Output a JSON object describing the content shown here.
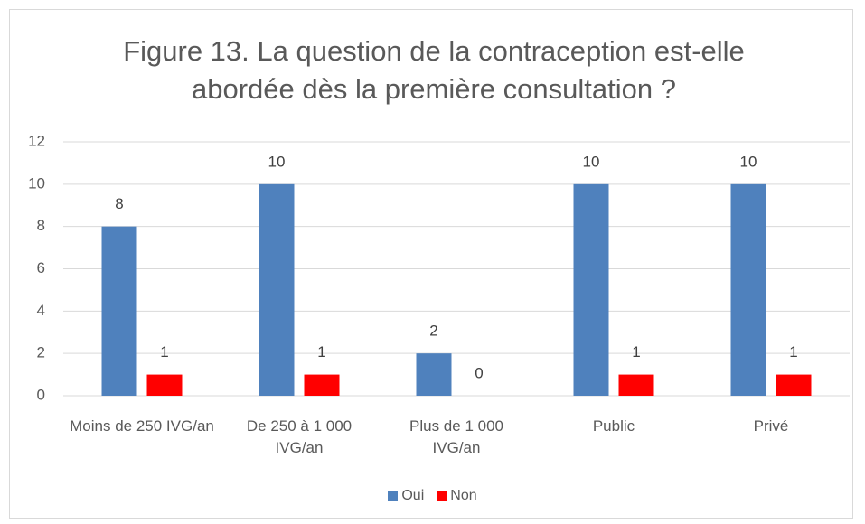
{
  "chart_data": {
    "type": "bar",
    "title": "Figure 13. La question de la contraception est-elle abordée dès la première consultation ?",
    "categories": [
      "Moins de 250 IVG/an",
      "De 250 à 1 000 IVG/an",
      "Plus de 1 000 IVG/an",
      "Public",
      "Privé"
    ],
    "series": [
      {
        "name": "Oui",
        "color": "#4f81bd",
        "values": [
          8,
          10,
          2,
          10,
          10
        ]
      },
      {
        "name": "Non",
        "color": "#ff0000",
        "values": [
          1,
          1,
          0,
          1,
          1
        ]
      }
    ],
    "ylim": [
      0,
      12
    ],
    "yticks": [
      0,
      2,
      4,
      6,
      8,
      10,
      12
    ],
    "grid": true,
    "legend": "bottom"
  }
}
